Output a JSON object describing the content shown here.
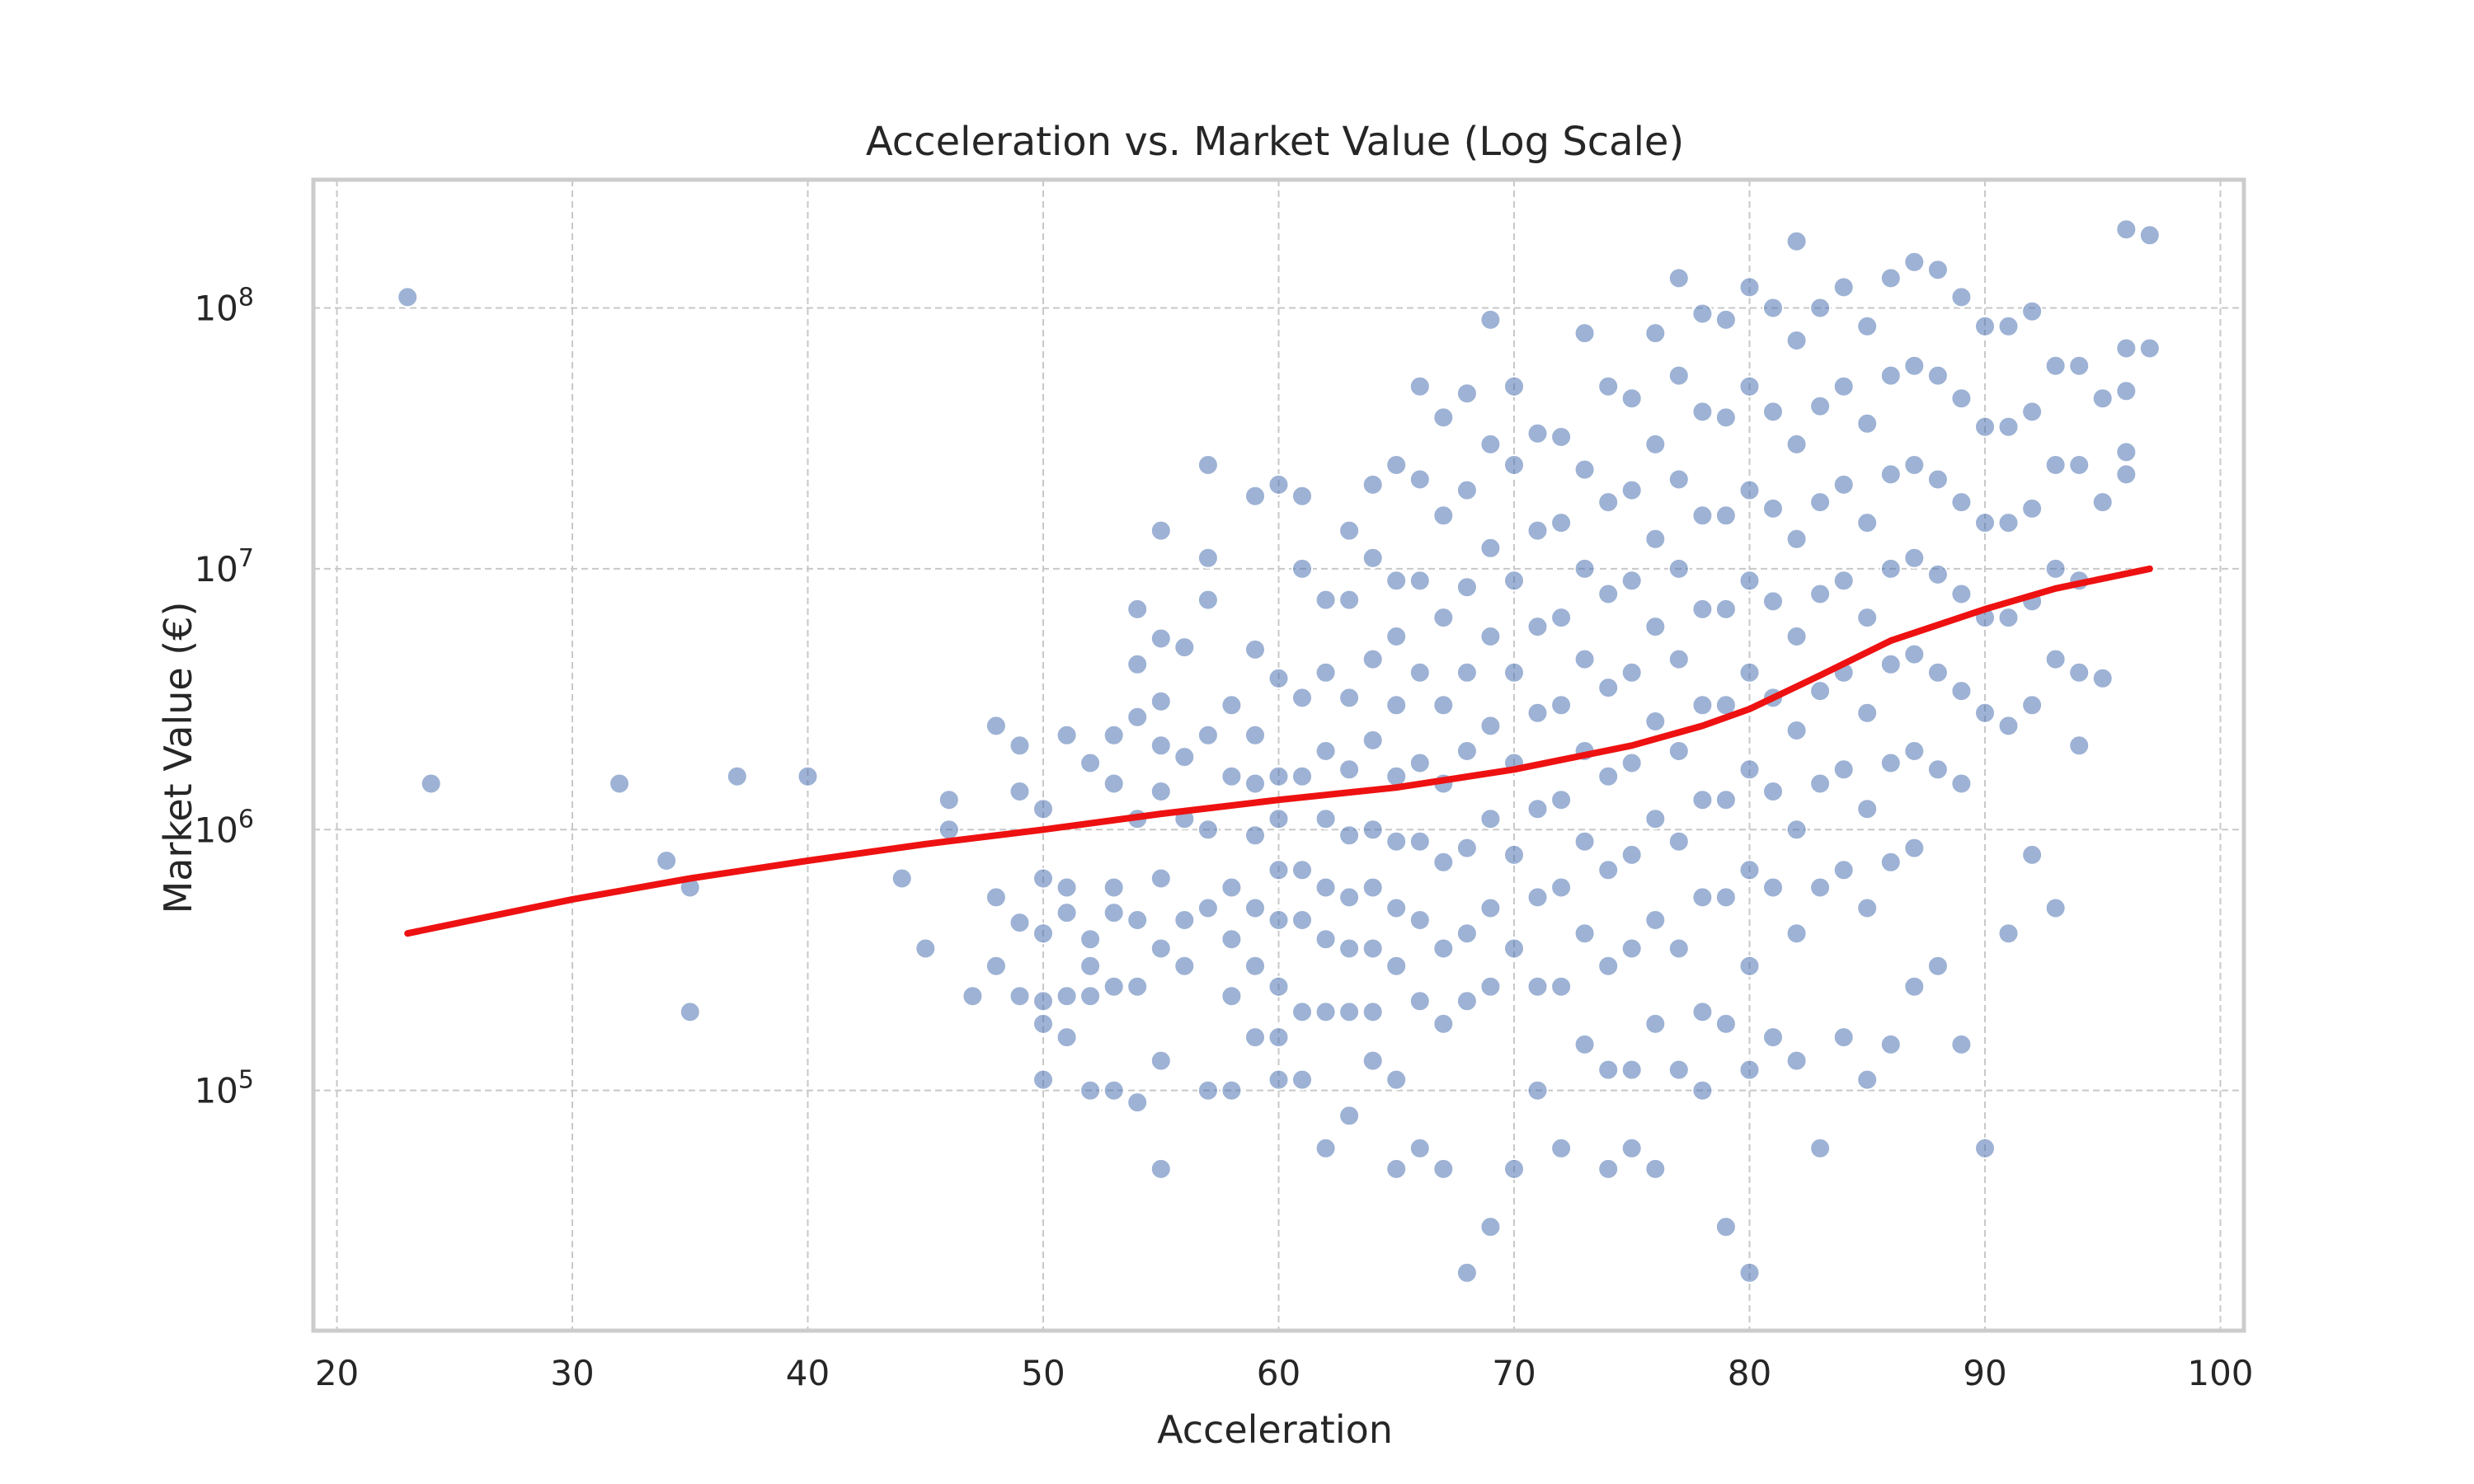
{
  "chart_data": {
    "type": "scatter",
    "title": "Acceleration vs. Market Value (Log Scale)",
    "xlabel": "Acceleration",
    "ylabel": "Market Value (€)",
    "xlim": [
      19,
      101
    ],
    "ylim": [
      12000,
      310000000
    ],
    "yscale": "log",
    "grid": true,
    "legend": "none",
    "x_ticks": [
      {
        "value": 20,
        "label": "20"
      },
      {
        "value": 30,
        "label": "30"
      },
      {
        "value": 40,
        "label": "40"
      },
      {
        "value": 50,
        "label": "50"
      },
      {
        "value": 60,
        "label": "60"
      },
      {
        "value": 70,
        "label": "70"
      },
      {
        "value": 80,
        "label": "80"
      },
      {
        "value": 90,
        "label": "90"
      },
      {
        "value": 100,
        "label": "100"
      }
    ],
    "y_ticks": [
      {
        "value": 100000,
        "base": "10",
        "exp": "5"
      },
      {
        "value": 1000000,
        "base": "10",
        "exp": "6"
      },
      {
        "value": 10000000,
        "base": "10",
        "exp": "7"
      },
      {
        "value": 100000000,
        "base": "10",
        "exp": "8"
      }
    ],
    "colors": {
      "points": "#4c72b0",
      "trend": "#ee1111"
    },
    "series": [
      {
        "type": "scatter",
        "x": [
          23,
          24,
          32,
          34,
          35,
          35,
          37,
          40,
          44,
          45,
          46,
          46,
          47,
          48,
          48,
          48,
          49,
          49,
          49,
          49,
          50,
          50,
          50,
          50,
          50,
          50,
          51,
          51,
          51,
          51,
          51,
          52,
          52,
          52,
          52,
          52,
          53,
          53,
          53,
          53,
          53,
          53,
          54,
          54,
          54,
          54,
          54,
          54,
          54,
          55,
          55,
          55,
          55,
          55,
          55,
          55,
          55,
          55,
          56,
          56,
          56,
          56,
          56,
          57,
          57,
          57,
          57,
          57,
          57,
          57,
          58,
          58,
          58,
          58,
          58,
          58,
          59,
          59,
          59,
          59,
          59,
          59,
          59,
          59,
          60,
          60,
          60,
          60,
          60,
          60,
          60,
          60,
          60,
          61,
          61,
          61,
          61,
          61,
          61,
          61,
          61,
          62,
          62,
          62,
          62,
          62,
          62,
          62,
          62,
          63,
          63,
          63,
          63,
          63,
          63,
          63,
          63,
          63,
          64,
          64,
          64,
          64,
          64,
          64,
          64,
          64,
          64,
          65,
          65,
          65,
          65,
          65,
          65,
          65,
          65,
          65,
          65,
          66,
          66,
          66,
          66,
          66,
          66,
          66,
          66,
          66,
          67,
          67,
          67,
          67,
          67,
          67,
          67,
          67,
          67,
          68,
          68,
          68,
          68,
          68,
          68,
          68,
          68,
          68,
          69,
          69,
          69,
          69,
          69,
          69,
          69,
          69,
          69,
          70,
          70,
          70,
          70,
          70,
          70,
          70,
          70,
          71,
          71,
          71,
          71,
          71,
          71,
          71,
          71,
          72,
          72,
          72,
          72,
          72,
          72,
          72,
          72,
          73,
          73,
          73,
          73,
          73,
          73,
          73,
          73,
          74,
          74,
          74,
          74,
          74,
          74,
          74,
          74,
          74,
          75,
          75,
          75,
          75,
          75,
          75,
          75,
          75,
          75,
          76,
          76,
          76,
          76,
          76,
          76,
          76,
          76,
          76,
          77,
          77,
          77,
          77,
          77,
          77,
          77,
          77,
          77,
          78,
          78,
          78,
          78,
          78,
          78,
          78,
          78,
          78,
          79,
          79,
          79,
          79,
          79,
          79,
          79,
          79,
          79,
          80,
          80,
          80,
          80,
          80,
          80,
          80,
          80,
          80,
          80,
          81,
          81,
          81,
          81,
          81,
          81,
          81,
          81,
          82,
          82,
          82,
          82,
          82,
          82,
          82,
          82,
          82,
          83,
          83,
          83,
          83,
          83,
          83,
          83,
          83,
          84,
          84,
          84,
          84,
          84,
          84,
          84,
          84,
          85,
          85,
          85,
          85,
          85,
          85,
          85,
          85,
          86,
          86,
          86,
          86,
          86,
          86,
          86,
          86,
          87,
          87,
          87,
          87,
          87,
          87,
          87,
          87,
          88,
          88,
          88,
          88,
          88,
          88,
          88,
          89,
          89,
          89,
          89,
          89,
          89,
          89,
          90,
          90,
          90,
          90,
          90,
          90,
          91,
          91,
          91,
          91,
          91,
          91,
          92,
          92,
          92,
          92,
          92,
          92,
          93,
          93,
          93,
          93,
          93,
          94,
          94,
          94,
          94,
          94,
          95,
          95,
          95,
          96,
          96,
          96,
          96,
          96,
          97,
          97
        ],
        "y": [
          110000000,
          1500000,
          1500000,
          760000,
          200000,
          600000,
          1600000,
          1600000,
          650000,
          350000,
          1300000,
          1000000,
          230000,
          2500000,
          550000,
          300000,
          2100000,
          1400000,
          230000,
          440000,
          1200000,
          650000,
          400000,
          220000,
          180000,
          110000,
          2300000,
          480000,
          600000,
          230000,
          160000,
          1800000,
          300000,
          380000,
          230000,
          100000,
          1500000,
          600000,
          480000,
          250000,
          100000,
          2300000,
          7000000,
          2700000,
          4300000,
          1100000,
          450000,
          250000,
          90000,
          14000000,
          5400000,
          3100000,
          2100000,
          1400000,
          650000,
          350000,
          130000,
          50000,
          5000000,
          1900000,
          1100000,
          450000,
          300000,
          25000000,
          11000000,
          7600000,
          2300000,
          1000000,
          500000,
          100000,
          3000000,
          1600000,
          600000,
          380000,
          230000,
          100000,
          19000000,
          4900000,
          2300000,
          1500000,
          950000,
          500000,
          300000,
          160000,
          21000000,
          3800000,
          1600000,
          1100000,
          700000,
          450000,
          250000,
          160000,
          110000,
          19000000,
          10000000,
          3200000,
          1600000,
          700000,
          450000,
          200000,
          110000,
          7600000,
          4000000,
          2000000,
          1100000,
          600000,
          380000,
          200000,
          60000,
          14000000,
          7600000,
          3200000,
          1700000,
          950000,
          550000,
          350000,
          200000,
          80000,
          21000000,
          11000000,
          4500000,
          2200000,
          1000000,
          600000,
          350000,
          200000,
          130000,
          25000000,
          9000000,
          5500000,
          3000000,
          1600000,
          900000,
          500000,
          300000,
          110000,
          50000,
          50000000,
          22000000,
          9000000,
          4000000,
          1800000,
          900000,
          450000,
          220000,
          60000,
          38000000,
          16000000,
          6500000,
          3000000,
          1500000,
          750000,
          350000,
          180000,
          50000,
          47000000,
          20000000,
          8500000,
          4000000,
          2000000,
          850000,
          400000,
          220000,
          20000,
          90000000,
          30000000,
          12000000,
          5500000,
          2500000,
          1100000,
          500000,
          250000,
          30000,
          50000000,
          25000000,
          9000000,
          4000000,
          1800000,
          800000,
          350000,
          50000,
          33000000,
          14000000,
          6000000,
          2800000,
          1200000,
          550000,
          250000,
          100000,
          32000000,
          15000000,
          6500000,
          3000000,
          1300000,
          600000,
          250000,
          60000,
          80000000,
          24000000,
          10000000,
          4500000,
          2000000,
          900000,
          400000,
          150000,
          50000,
          50000000,
          18000000,
          8000000,
          3500000,
          1600000,
          700000,
          300000,
          120000,
          45000000,
          20000000,
          9000000,
          4000000,
          1800000,
          800000,
          350000,
          120000,
          60000,
          80000000,
          30000000,
          13000000,
          6000000,
          2600000,
          1100000,
          450000,
          180000,
          50000,
          130000000,
          55000000,
          22000000,
          10000000,
          4500000,
          2000000,
          900000,
          350000,
          120000,
          95000000,
          40000000,
          16000000,
          7000000,
          3000000,
          1300000,
          550000,
          200000,
          100000,
          90000000,
          38000000,
          16000000,
          7000000,
          3000000,
          1300000,
          550000,
          180000,
          30000,
          120000000,
          50000000,
          20000000,
          9000000,
          4000000,
          1700000,
          700000,
          300000,
          120000,
          20000,
          100000000,
          40000000,
          17000000,
          7500000,
          3200000,
          1400000,
          600000,
          160000,
          180000000,
          75000000,
          30000000,
          13000000,
          5500000,
          2400000,
          1000000,
          400000,
          130000,
          100000000,
          42000000,
          18000000,
          8000000,
          3400000,
          1500000,
          600000,
          60000,
          120000000,
          50000000,
          21000000,
          9000000,
          4000000,
          1700000,
          700000,
          160000,
          85000000,
          36000000,
          15000000,
          6500000,
          2800000,
          1200000,
          500000,
          110000,
          130000000,
          55000000,
          23000000,
          10000000,
          4300000,
          1800000,
          750000,
          150000,
          150000000,
          60000000,
          25000000,
          11000000,
          4700000,
          2000000,
          850000,
          250000,
          140000000,
          55000000,
          22000000,
          9500000,
          4000000,
          1700000,
          300000,
          110000000,
          45000000,
          18000000,
          8000000,
          3400000,
          1500000,
          150000,
          85000000,
          35000000,
          15000000,
          6500000,
          2800000,
          60000,
          85000000,
          35000000,
          15000000,
          6500000,
          2500000,
          400000,
          97000000,
          40000000,
          17000000,
          7500000,
          3000000,
          800000,
          60000000,
          25000000,
          10000000,
          4500000,
          500000,
          60000000,
          25000000,
          9000000,
          4000000,
          2100000,
          45000000,
          18000000,
          3800000,
          200000000,
          70000000,
          48000000,
          28000000,
          23000000,
          190000000,
          70000000
        ]
      },
      {
        "type": "line",
        "x": [
          23,
          30,
          35,
          40,
          45,
          50,
          55,
          60,
          65,
          70,
          72,
          75,
          78,
          80,
          83,
          86,
          90,
          93,
          97
        ],
        "y": [
          400000,
          540000,
          650000,
          760000,
          880000,
          1000000,
          1150000,
          1300000,
          1450000,
          1700000,
          1850000,
          2100000,
          2500000,
          2900000,
          3900000,
          5300000,
          7000000,
          8400000,
          10000000
        ]
      }
    ]
  }
}
